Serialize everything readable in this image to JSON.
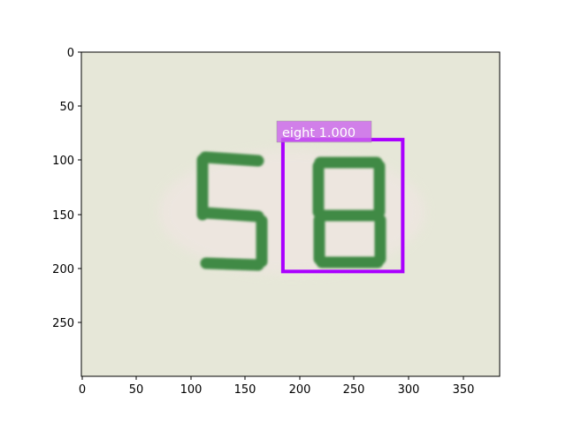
{
  "plot": {
    "x_ticks": [
      "0",
      "50",
      "100",
      "150",
      "200",
      "250",
      "300",
      "350"
    ],
    "y_ticks": [
      "0",
      "50",
      "100",
      "150",
      "200",
      "250"
    ],
    "x_range": [
      0,
      384
    ],
    "y_range": [
      0,
      300
    ]
  },
  "image": {
    "background_color": "#e6e7d8",
    "digit_color": "#3f8a45",
    "digits": [
      "5",
      "8"
    ]
  },
  "detection": {
    "label": "eight 1.000",
    "box_color": "#aa00ff",
    "label_bg_color": "#cc66ee",
    "box_data": {
      "x_min": 185,
      "y_min": 81,
      "x_max": 295,
      "y_max": 203
    }
  }
}
